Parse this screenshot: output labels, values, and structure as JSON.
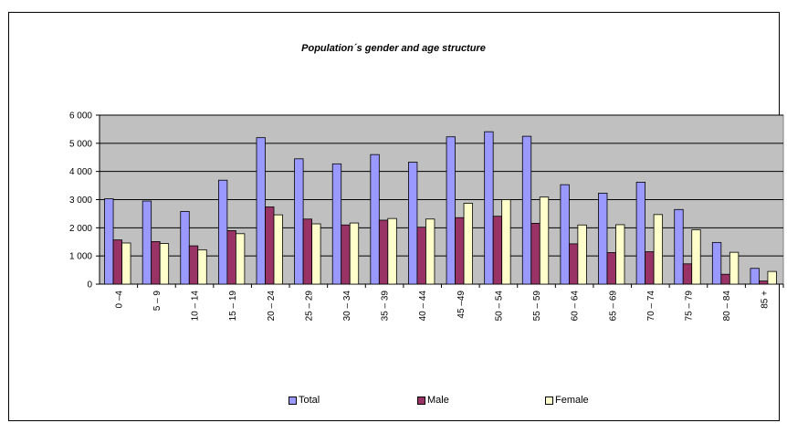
{
  "chart_data": {
    "type": "bar",
    "title": "Population´s gender and age structure",
    "categories": [
      "0 –4",
      "5 – 9",
      "10 – 14",
      "15 – 19",
      "20 – 24",
      "25 – 29",
      "30 – 34",
      "35 – 39",
      "40 – 44",
      "45 –49",
      "50 – 54",
      "55 – 59",
      "60 – 64",
      "65 – 69",
      "70 – 74",
      "75 – 79",
      "80 – 84",
      "85 +"
    ],
    "series": [
      {
        "name": "Total",
        "color": "#9999ff",
        "values": [
          3030,
          2950,
          2580,
          3690,
          5200,
          4450,
          4270,
          4600,
          4330,
          5230,
          5410,
          5250,
          3530,
          3230,
          3620,
          2650,
          1480,
          560
        ]
      },
      {
        "name": "Male",
        "color": "#993366",
        "values": [
          1570,
          1510,
          1360,
          1900,
          2740,
          2310,
          2100,
          2270,
          2020,
          2360,
          2410,
          2160,
          1430,
          1120,
          1150,
          720,
          350,
          110
        ]
      },
      {
        "name": "Female",
        "color": "#ffffcc",
        "values": [
          1460,
          1440,
          1220,
          1790,
          2460,
          2140,
          2170,
          2330,
          2310,
          2870,
          3000,
          3090,
          2100,
          2110,
          2470,
          1930,
          1130,
          450
        ]
      }
    ],
    "ylim": [
      0,
      6000
    ],
    "yticks": [
      "0",
      "1 000",
      "2 000",
      "3 000",
      "4 000",
      "5 000",
      "6 000"
    ],
    "plot_background": "#c0c0c0",
    "grid": true,
    "legend_position": "bottom"
  }
}
